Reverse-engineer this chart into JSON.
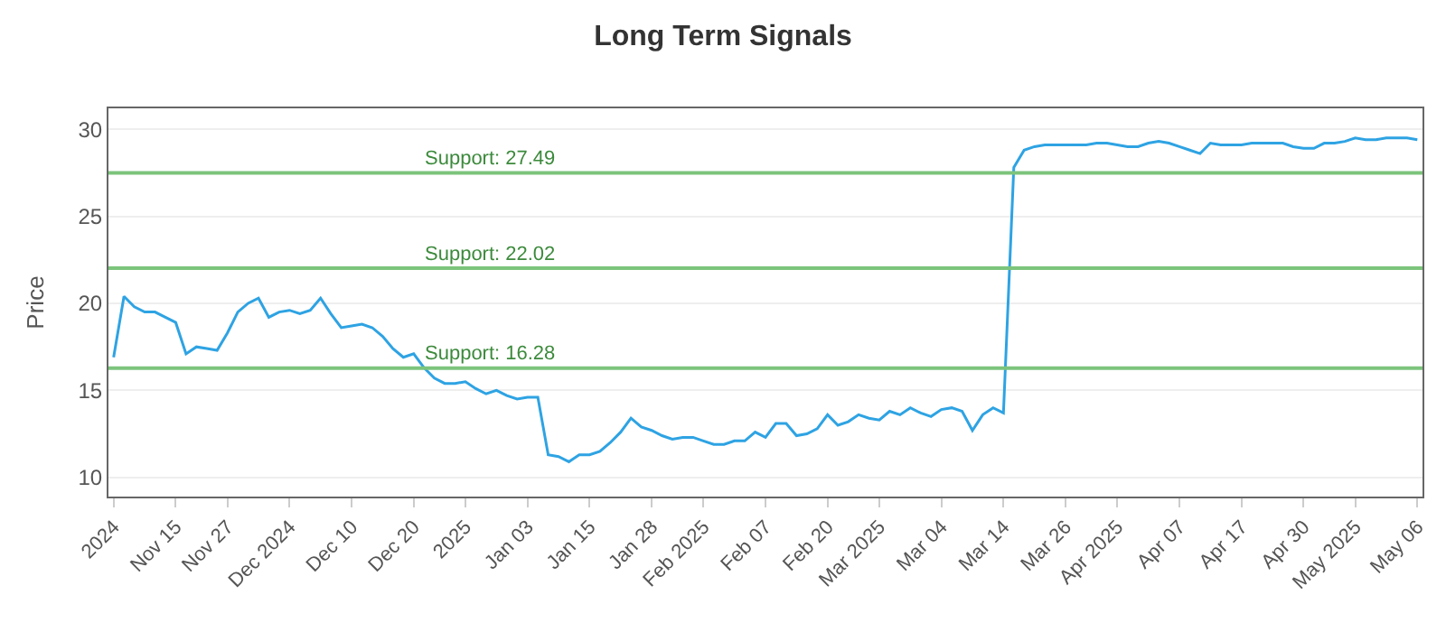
{
  "chart_data": {
    "type": "line",
    "title": "Long Term Signals",
    "ylabel": "Price",
    "categories": [
      "2024",
      null,
      null,
      null,
      null,
      null,
      "Nov 15",
      null,
      null,
      null,
      null,
      "Nov 27",
      null,
      null,
      null,
      null,
      null,
      "Dec 2024",
      null,
      null,
      null,
      null,
      null,
      "Dec 10",
      null,
      null,
      null,
      null,
      null,
      "Dec 20",
      null,
      null,
      null,
      null,
      "2025",
      null,
      null,
      null,
      null,
      null,
      "Jan 03",
      null,
      null,
      null,
      null,
      null,
      "Jan 15",
      null,
      null,
      null,
      null,
      null,
      "Jan 28",
      null,
      null,
      null,
      null,
      "Feb 2025",
      null,
      null,
      null,
      null,
      null,
      "Feb 07",
      null,
      null,
      null,
      null,
      null,
      "Feb 20",
      null,
      null,
      null,
      null,
      "Mar 2025",
      null,
      null,
      null,
      null,
      null,
      "Mar 04",
      null,
      null,
      null,
      null,
      null,
      "Mar 14",
      null,
      null,
      null,
      null,
      null,
      "Mar 26",
      null,
      null,
      null,
      null,
      "Apr 2025",
      null,
      null,
      null,
      null,
      null,
      "Apr 07",
      null,
      null,
      null,
      null,
      null,
      "Apr 17",
      null,
      null,
      null,
      null,
      null,
      "Apr 30",
      null,
      null,
      null,
      null,
      "May 2025",
      null,
      null,
      null,
      null,
      null,
      "May 06"
    ],
    "series": [
      {
        "color": "#2ea3e3",
        "values": [
          16.9,
          20.4,
          19.8,
          19.5,
          19.5,
          19.2,
          18.9,
          17.1,
          17.5,
          17.4,
          17.3,
          18.3,
          19.5,
          20.0,
          20.3,
          19.2,
          19.5,
          19.6,
          19.4,
          19.6,
          20.3,
          19.4,
          18.6,
          18.7,
          18.8,
          18.6,
          18.1,
          17.4,
          16.9,
          17.1,
          16.3,
          15.7,
          15.4,
          15.4,
          15.5,
          15.1,
          14.8,
          15.0,
          14.7,
          14.5,
          14.6,
          14.6,
          11.3,
          11.2,
          10.9,
          11.3,
          11.3,
          11.5,
          12.0,
          12.6,
          13.4,
          12.9,
          12.7,
          12.4,
          12.2,
          12.3,
          12.3,
          12.1,
          11.9,
          11.9,
          12.1,
          12.1,
          12.6,
          12.3,
          13.1,
          13.1,
          12.4,
          12.5,
          12.8,
          13.6,
          13.0,
          13.2,
          13.6,
          13.4,
          13.3,
          13.8,
          13.6,
          14.0,
          13.7,
          13.5,
          13.9,
          14.0,
          13.8,
          12.7,
          13.6,
          14.0,
          13.7,
          27.8,
          28.8,
          29.0,
          29.1,
          29.1,
          29.1,
          29.1,
          29.1,
          29.2,
          29.2,
          29.1,
          29.0,
          29.0,
          29.2,
          29.3,
          29.2,
          29.0,
          28.8,
          28.6,
          29.2,
          29.1,
          29.1,
          29.1,
          29.2,
          29.2,
          29.2,
          29.2,
          29.0,
          28.9,
          28.9,
          29.2,
          29.2,
          29.3,
          29.5,
          29.4,
          29.4,
          29.5,
          29.5,
          29.5,
          29.4
        ]
      }
    ],
    "ylim": [
      8.9,
      31.2
    ],
    "yticks": [
      10,
      15,
      20,
      25,
      30
    ],
    "grid": "y",
    "legend": false,
    "marker": "none",
    "line_style": "solid",
    "ref_lines": [
      {
        "axis": "y",
        "value": 27.49,
        "label": "Support: 27.49",
        "color": "#7cc47c"
      },
      {
        "axis": "y",
        "value": 22.02,
        "label": "Support: 22.02",
        "color": "#7cc47c"
      },
      {
        "axis": "y",
        "value": 16.28,
        "label": "Support: 16.28",
        "color": "#7cc47c"
      }
    ]
  }
}
